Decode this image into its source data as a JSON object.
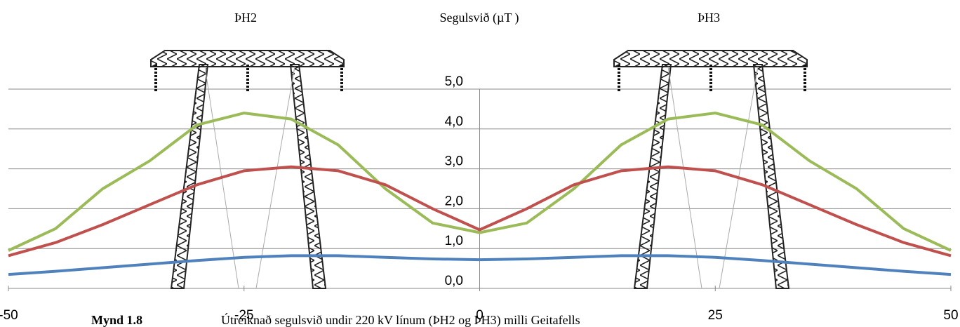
{
  "chart_data": {
    "type": "line",
    "header_labels": [
      "ÞH2",
      "Segulsvið (µT )",
      "ÞH3"
    ],
    "caption": {
      "label": "Mynd 1.8",
      "text": "Útreiknað segulsvið undir 220 kV línum (ÞH2 og ÞH3) milli Geitafells"
    },
    "x": [
      -50,
      -45,
      -40,
      -35,
      -30,
      -25,
      -20,
      -15,
      -10,
      -5,
      0,
      5,
      10,
      15,
      20,
      25,
      30,
      35,
      40,
      45,
      50
    ],
    "series": [
      {
        "color": "#9bbb59",
        "values": [
          0.95,
          1.5,
          2.5,
          3.2,
          4.1,
          4.4,
          4.25,
          3.6,
          2.5,
          1.64,
          1.4,
          1.64,
          2.5,
          3.6,
          4.25,
          4.4,
          4.1,
          3.2,
          2.5,
          1.5,
          0.95
        ]
      },
      {
        "color": "#c0504d",
        "values": [
          0.82,
          1.15,
          1.6,
          2.1,
          2.6,
          2.95,
          3.05,
          2.95,
          2.6,
          2.0,
          1.47,
          2.0,
          2.6,
          2.95,
          3.05,
          2.95,
          2.6,
          2.1,
          1.6,
          1.15,
          0.82
        ]
      },
      {
        "color": "#4f81bd",
        "values": [
          0.35,
          0.43,
          0.52,
          0.61,
          0.7,
          0.78,
          0.82,
          0.82,
          0.78,
          0.74,
          0.72,
          0.74,
          0.78,
          0.82,
          0.82,
          0.78,
          0.7,
          0.61,
          0.52,
          0.43,
          0.35
        ]
      }
    ],
    "xlim": [
      -50,
      50
    ],
    "xticks": [
      -50,
      -25,
      0,
      25,
      50
    ],
    "ylim": [
      0,
      5
    ],
    "yticks": [
      {
        "value": 0,
        "label": "0,0"
      },
      {
        "value": 1,
        "label": "1,0"
      },
      {
        "value": 2,
        "label": "2,0"
      },
      {
        "value": 3,
        "label": "3,0"
      },
      {
        "value": 4,
        "label": "4,0"
      },
      {
        "value": 5,
        "label": "5,0"
      }
    ],
    "grid": true
  }
}
